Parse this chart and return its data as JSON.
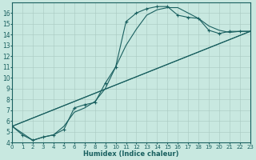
{
  "xlabel": "Humidex (Indice chaleur)",
  "xlim": [
    0,
    23
  ],
  "ylim": [
    4,
    17
  ],
  "yticks": [
    4,
    5,
    6,
    7,
    8,
    9,
    10,
    11,
    12,
    13,
    14,
    15,
    16
  ],
  "xticks": [
    0,
    1,
    2,
    3,
    4,
    5,
    6,
    7,
    8,
    9,
    10,
    11,
    12,
    13,
    14,
    15,
    16,
    17,
    18,
    19,
    20,
    21,
    22,
    23
  ],
  "bg_color": "#c8e8e0",
  "line_color": "#1a6060",
  "grid_color": "#a8c8c0",
  "series_marked": {
    "x": [
      0,
      1,
      2,
      3,
      4,
      5,
      6,
      7,
      8,
      9,
      10,
      11,
      12,
      13,
      14,
      15,
      16,
      17,
      18,
      19,
      20,
      21,
      22,
      23
    ],
    "y": [
      5.5,
      4.7,
      4.2,
      4.5,
      4.7,
      5.2,
      7.2,
      7.5,
      7.7,
      9.5,
      11.0,
      15.2,
      16.0,
      16.4,
      16.6,
      16.6,
      15.8,
      15.6,
      15.5,
      14.4,
      14.1,
      14.3,
      14.3,
      14.3
    ]
  },
  "series_smooth": {
    "x": [
      0,
      2,
      3,
      4,
      5,
      6,
      7,
      8,
      9,
      10,
      11,
      12,
      13,
      14,
      15,
      16,
      17,
      18,
      19,
      20,
      21,
      22,
      23
    ],
    "y": [
      5.5,
      4.2,
      4.5,
      4.7,
      5.5,
      6.8,
      7.2,
      7.8,
      9.0,
      11.0,
      13.0,
      14.5,
      15.8,
      16.3,
      16.5,
      16.5,
      16.0,
      15.5,
      14.8,
      14.4,
      14.2,
      14.3,
      14.3
    ]
  },
  "diag1": {
    "x": [
      0,
      23
    ],
    "y": [
      5.5,
      14.3
    ]
  },
  "diag2": {
    "x": [
      0,
      23
    ],
    "y": [
      5.5,
      14.3
    ]
  }
}
